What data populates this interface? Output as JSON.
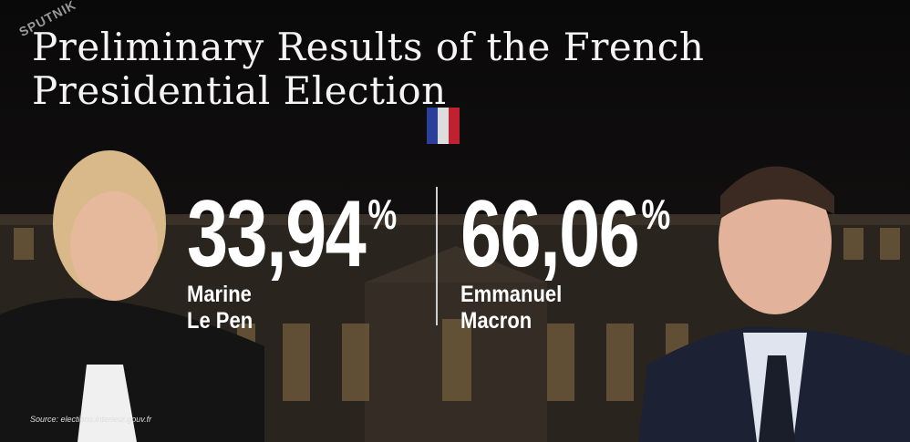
{
  "logo": "SPUTNIK",
  "title": [
    "Preliminary Results of the French",
    "Presidential Election"
  ],
  "candidates": [
    {
      "share": "33,94",
      "percent_sign": "%",
      "name": [
        "Marine",
        "Le Pen"
      ]
    },
    {
      "share": "66,06",
      "percent_sign": "%",
      "name": [
        "Emmanuel",
        "Macron"
      ]
    }
  ],
  "source": "Source: elections.interieur.gouv.fr"
}
